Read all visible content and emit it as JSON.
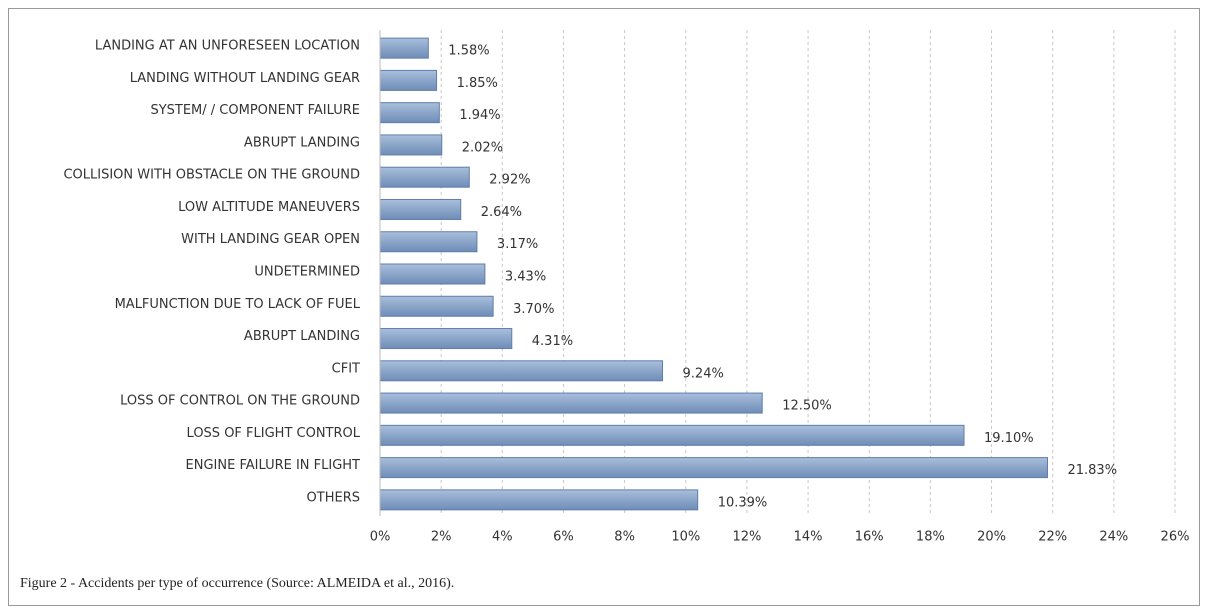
{
  "chart_data": {
    "type": "bar",
    "orientation": "horizontal",
    "caption": "Figure 2 - Accidents per type of occurrence (Source: ALMEIDA et al., 2016).",
    "categories": [
      "LANDING AT AN UNFORESEEN LOCATION",
      "LANDING WITHOUT LANDING GEAR",
      "SYSTEM/ / COMPONENT FAILURE",
      "ABRUPT LANDING",
      "COLLISION WITH OBSTACLE ON THE GROUND",
      "LOW ALTITUDE MANEUVERS",
      "WITH LANDING GEAR OPEN",
      "UNDETERMINED",
      "MALFUNCTION DUE TO LACK OF FUEL",
      "ABRUPT LANDING",
      "CFIT",
      "LOSS OF CONTROL ON THE GROUND",
      "LOSS OF FLIGHT CONTROL",
      "ENGINE FAILURE IN FLIGHT",
      "OTHERS"
    ],
    "values": [
      1.58,
      1.85,
      1.94,
      2.02,
      2.92,
      2.64,
      3.17,
      3.43,
      3.7,
      4.31,
      9.24,
      12.5,
      19.1,
      21.83,
      10.39
    ],
    "value_labels": [
      "1.58%",
      "1.85%",
      "1.94%",
      "2.02%",
      "2.92%",
      "2.64%",
      "3.17%",
      "3.43%",
      "3.70%",
      "4.31%",
      "9.24%",
      "12.50%",
      "19.10%",
      "21.83%",
      "10.39%"
    ],
    "color": "#8ba5c9",
    "xlim": [
      0,
      26
    ],
    "xticks": [
      {
        "value": 0,
        "label": "0%"
      },
      {
        "value": 2,
        "label": "2%"
      },
      {
        "value": 4,
        "label": "4%"
      },
      {
        "value": 6,
        "label": "6%"
      },
      {
        "value": 8,
        "label": "8%"
      },
      {
        "value": 10,
        "label": "10%"
      },
      {
        "value": 12,
        "label": "12%"
      },
      {
        "value": 14,
        "label": "14%"
      },
      {
        "value": 16,
        "label": "16%"
      },
      {
        "value": 18,
        "label": "18%"
      },
      {
        "value": 20,
        "label": "20%"
      },
      {
        "value": 22,
        "label": "22%"
      },
      {
        "value": 24,
        "label": "24%"
      },
      {
        "value": 26,
        "label": "26%"
      }
    ],
    "grid": true
  }
}
